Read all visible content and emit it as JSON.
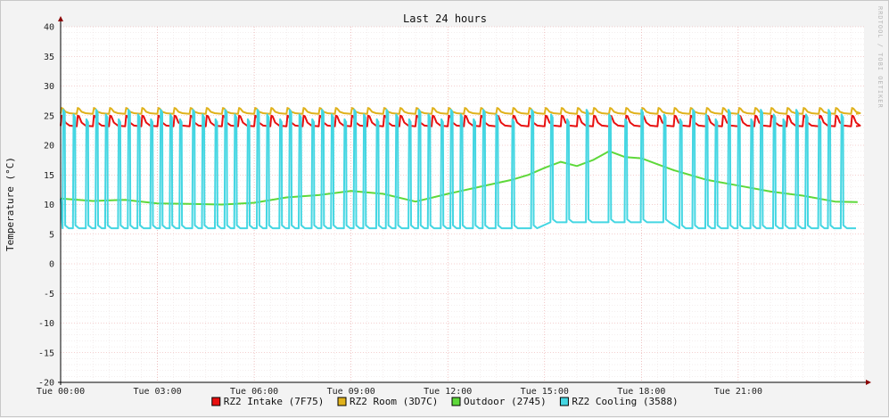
{
  "chart_data": {
    "type": "line",
    "title": "Last 24 hours",
    "ylabel": "Temperature (°C)",
    "watermark": "RRDTOOL / TOBI OETIKER",
    "ylim": [
      -20,
      40
    ],
    "xlim_hours": [
      0,
      24.9
    ],
    "yticks": [
      40,
      35,
      30,
      25,
      20,
      15,
      10,
      5,
      0,
      -5,
      -10,
      -15,
      -20
    ],
    "xticks": [
      {
        "hour": 0,
        "label": "Tue 00:00"
      },
      {
        "hour": 3,
        "label": "Tue 03:00"
      },
      {
        "hour": 6,
        "label": "Tue 06:00"
      },
      {
        "hour": 9,
        "label": "Tue 09:00"
      },
      {
        "hour": 12,
        "label": "Tue 12:00"
      },
      {
        "hour": 15,
        "label": "Tue 15:00"
      },
      {
        "hour": 18,
        "label": "Tue 18:00"
      },
      {
        "hour": 21,
        "label": "Tue 21:00"
      }
    ],
    "grid": true,
    "legend_position": "bottom",
    "series": [
      {
        "name": "RZ2 Intake (7F75)",
        "color": "#e81010",
        "pattern": "sawtooth",
        "baseline": 23.2,
        "peak": 25.0,
        "cycle_hours": 0.5
      },
      {
        "name": "RZ2 Room (3D7C)",
        "color": "#e0b21c",
        "pattern": "sawtooth",
        "baseline": 25.3,
        "peak": 26.3,
        "cycle_hours": 0.5
      },
      {
        "name": "Outdoor (2745)",
        "color": "#5ed83a",
        "pattern": "line",
        "x": [
          0,
          1,
          2,
          3,
          4,
          5,
          6,
          7,
          8,
          9,
          10,
          11,
          12,
          13,
          14,
          14.5,
          15,
          15.5,
          16,
          16.5,
          17,
          17.5,
          18,
          18.5,
          19,
          20,
          21,
          22,
          23,
          24.0,
          24.7
        ],
        "y": [
          11.0,
          10.6,
          10.8,
          10.2,
          10.1,
          10.0,
          10.3,
          11.2,
          11.6,
          12.3,
          11.8,
          10.5,
          11.8,
          13.0,
          14.2,
          15.0,
          16.2,
          17.2,
          16.5,
          17.5,
          19.0,
          18.0,
          17.8,
          16.8,
          15.8,
          14.2,
          13.2,
          12.2,
          11.5,
          10.5,
          10.4
        ]
      },
      {
        "name": "RZ2 Cooling (3588)",
        "color": "#44d6e2",
        "pattern": "spikes",
        "baseline": 6.0,
        "peak": 26.0,
        "spikes_hours": [
          0.08,
          0.4,
          0.8,
          1.1,
          1.4,
          1.8,
          2.1,
          2.4,
          2.8,
          3.1,
          3.4,
          3.7,
          4.1,
          4.4,
          4.8,
          5.1,
          5.4,
          5.8,
          6.1,
          6.4,
          6.8,
          7.1,
          7.4,
          7.8,
          8.1,
          8.4,
          8.8,
          9.1,
          9.4,
          9.8,
          10.1,
          10.4,
          10.8,
          11.1,
          11.4,
          11.8,
          12.1,
          12.4,
          12.8,
          13.1,
          13.5,
          14.0,
          14.6,
          15.2,
          15.7,
          16.3,
          17.0,
          17.5,
          18.0,
          18.7,
          19.2,
          19.6,
          20.0,
          20.3,
          20.7,
          21.0,
          21.4,
          21.7,
          22.1,
          22.4,
          22.8,
          23.1,
          23.5,
          23.8,
          24.2
        ]
      }
    ]
  }
}
